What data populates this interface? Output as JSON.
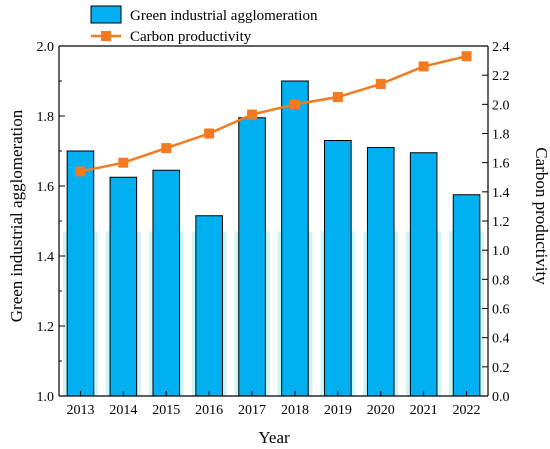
{
  "chart_data": {
    "type": "bar",
    "categories": [
      "2013",
      "2014",
      "2015",
      "2016",
      "2017",
      "2018",
      "2019",
      "2020",
      "2021",
      "2022"
    ],
    "series": [
      {
        "name": "Green industrial agglomeration",
        "kind": "bar",
        "axis": "left",
        "color": "#00b0f0",
        "values": [
          1.7,
          1.625,
          1.645,
          1.515,
          1.795,
          1.9,
          1.73,
          1.71,
          1.695,
          1.575
        ]
      },
      {
        "name": "Carbon productivity",
        "kind": "line",
        "axis": "right",
        "color": "#f47a1f",
        "values": [
          1.54,
          1.6,
          1.7,
          1.8,
          1.93,
          2.0,
          2.05,
          2.14,
          2.26,
          2.33
        ]
      }
    ],
    "xlabel": "Year",
    "ylabel": "Green industrial agglomeration",
    "y2label": "Carbon productivity",
    "ylim": [
      1.0,
      2.0
    ],
    "y2lim": [
      0.0,
      2.4
    ],
    "yticks": [
      "1.0",
      "1.2",
      "1.4",
      "1.6",
      "1.8",
      "2.0"
    ],
    "y2ticks": [
      "0.0",
      "0.2",
      "0.4",
      "0.6",
      "0.8",
      "1.0",
      "1.2",
      "1.4",
      "1.6",
      "1.8",
      "2.0",
      "2.2",
      "2.4"
    ],
    "grid": false,
    "legend_position": "top-center",
    "background_band_color": "#ccf5f8"
  }
}
